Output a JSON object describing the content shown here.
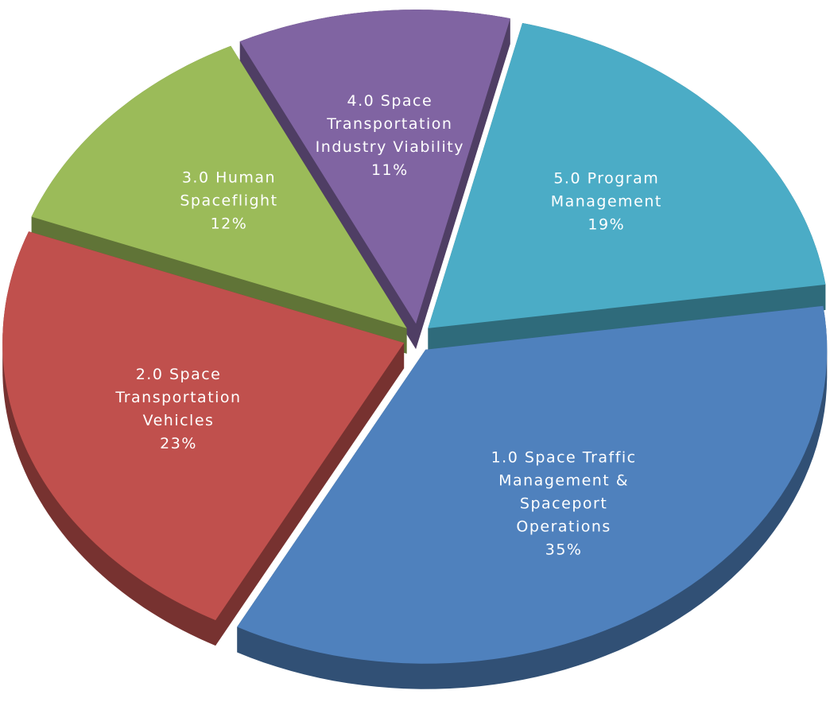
{
  "chart_data": {
    "type": "pie",
    "categories": [
      "1.0 Space Traffic Management & Spaceport Operations",
      "2.0 Space Transportation Vehicles",
      "3.0 Human Spaceflight",
      "4.0 Space Transportation Industry Viability",
      "5.0 Program Management"
    ],
    "values": [
      35,
      23,
      12,
      11,
      19
    ],
    "value_labels": [
      "35%",
      "23%",
      "12%",
      "11%",
      "19%"
    ],
    "colors": [
      "#4f81bd",
      "#c0504d",
      "#9bbb59",
      "#8064a2",
      "#4bacc6"
    ],
    "exploded": true,
    "three_d": true
  }
}
